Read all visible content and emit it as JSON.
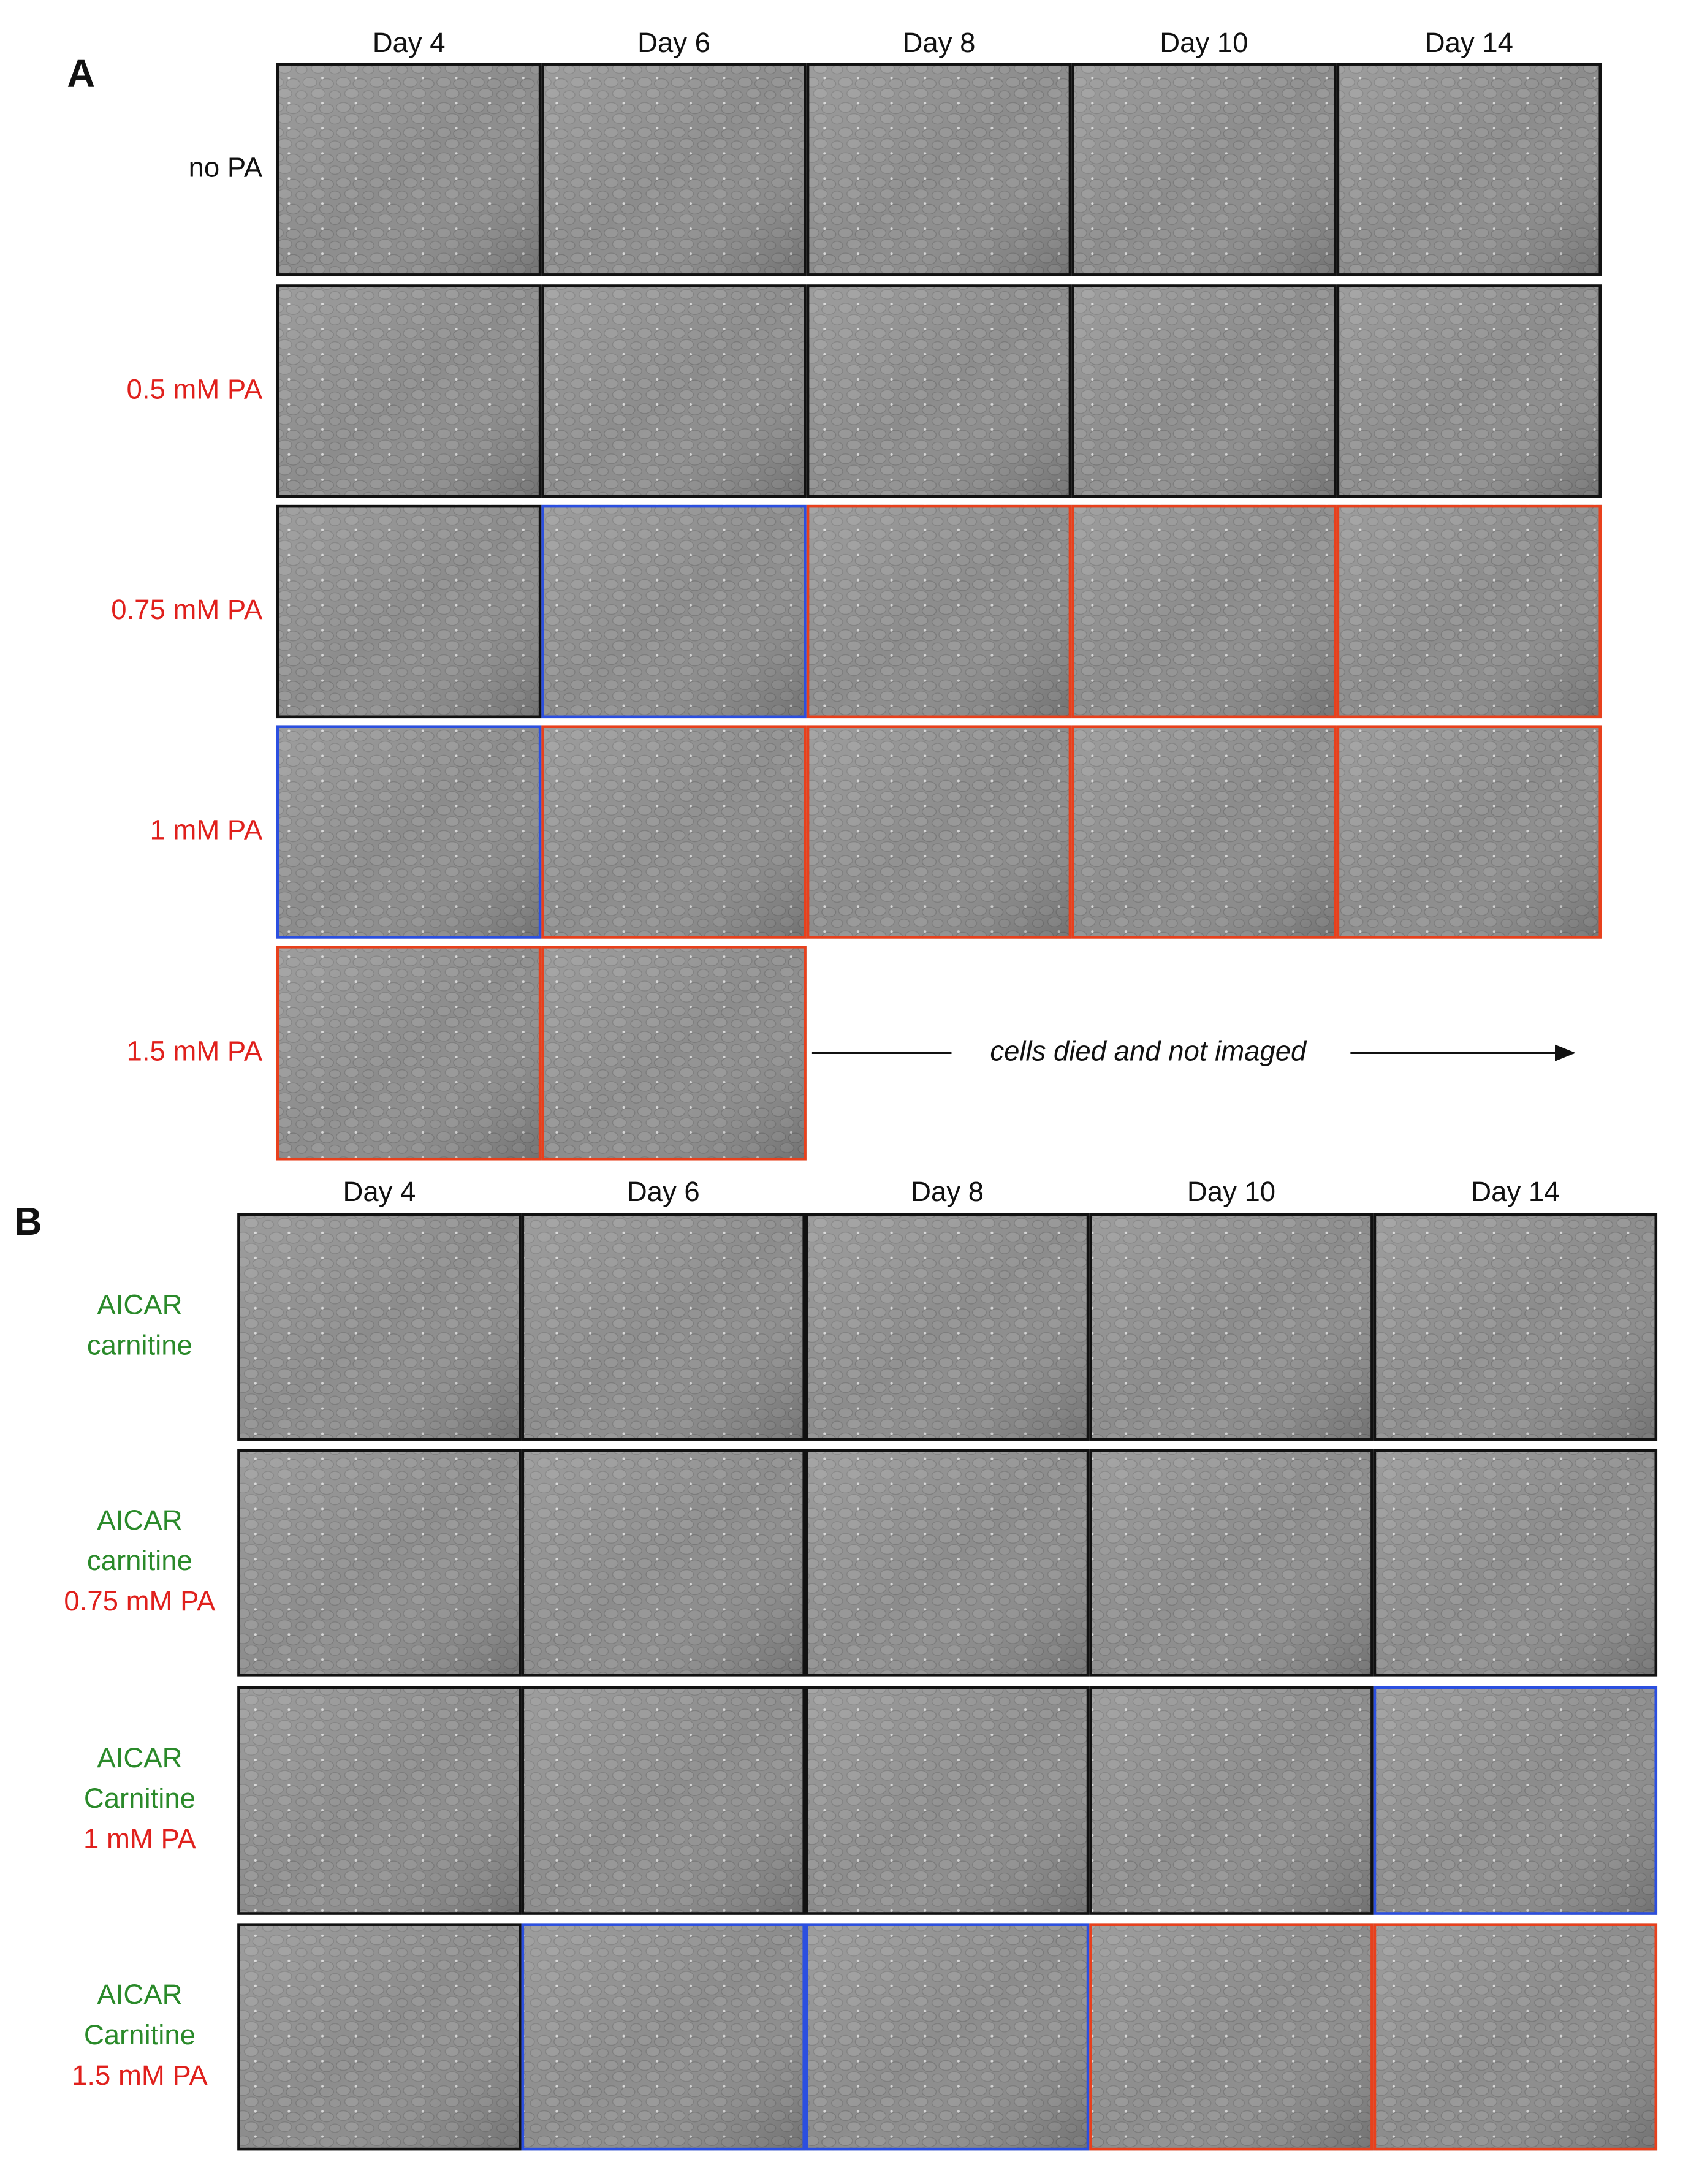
{
  "panels": [
    {
      "label": "A",
      "columns": [
        "Day 4",
        "Day 6",
        "Day 8",
        "Day 10",
        "Day 14"
      ],
      "rows": [
        {
          "label": [
            {
              "text": "no PA",
              "color": "#111111"
            }
          ],
          "frames": [
            "#111111",
            "#111111",
            "#111111",
            "#111111",
            "#111111"
          ]
        },
        {
          "label": [
            {
              "text": "0.5 mM PA",
              "color": "#e0201c"
            }
          ],
          "frames": [
            "#111111",
            "#111111",
            "#111111",
            "#111111",
            "#111111"
          ]
        },
        {
          "label": [
            {
              "text": "0.75 mM PA",
              "color": "#e0201c"
            }
          ],
          "frames": [
            "#111111",
            "#2b4fe0",
            "#e8401c",
            "#e8401c",
            "#e8401c"
          ]
        },
        {
          "label": [
            {
              "text": "1 mM PA",
              "color": "#e0201c"
            }
          ],
          "frames": [
            "#2b4fe0",
            "#e8401c",
            "#e8401c",
            "#e8401c",
            "#e8401c"
          ]
        },
        {
          "label": [
            {
              "text": "1.5 mM PA",
              "color": "#e0201c"
            }
          ],
          "frames": [
            "#e8401c",
            "#e8401c"
          ]
        }
      ],
      "note": "cells died and not imaged"
    },
    {
      "label": "B",
      "columns": [
        "Day 4",
        "Day 6",
        "Day 8",
        "Day 10",
        "Day 14"
      ],
      "rows": [
        {
          "label": [
            {
              "text": "AICAR",
              "color": "#2a8a2a"
            },
            {
              "text": "carnitine",
              "color": "#2a8a2a"
            }
          ],
          "frames": [
            "#111111",
            "#111111",
            "#111111",
            "#111111",
            "#111111"
          ]
        },
        {
          "label": [
            {
              "text": "AICAR",
              "color": "#2a8a2a"
            },
            {
              "text": "carnitine",
              "color": "#2a8a2a"
            },
            {
              "text": "0.75 mM PA",
              "color": "#e0201c"
            }
          ],
          "frames": [
            "#111111",
            "#111111",
            "#111111",
            "#111111",
            "#111111"
          ]
        },
        {
          "label": [
            {
              "text": "AICAR",
              "color": "#2a8a2a"
            },
            {
              "text": "Carnitine",
              "color": "#2a8a2a"
            },
            {
              "text": "1 mM PA",
              "color": "#e0201c"
            }
          ],
          "frames": [
            "#111111",
            "#111111",
            "#111111",
            "#111111",
            "#2b4fe0"
          ]
        },
        {
          "label": [
            {
              "text": "AICAR",
              "color": "#2a8a2a"
            },
            {
              "text": "Carnitine",
              "color": "#2a8a2a"
            },
            {
              "text": "1.5 mM PA",
              "color": "#e0201c"
            }
          ],
          "frames": [
            "#111111",
            "#2b4fe0",
            "#2b4fe0",
            "#e8401c",
            "#e8401c"
          ]
        }
      ]
    }
  ]
}
